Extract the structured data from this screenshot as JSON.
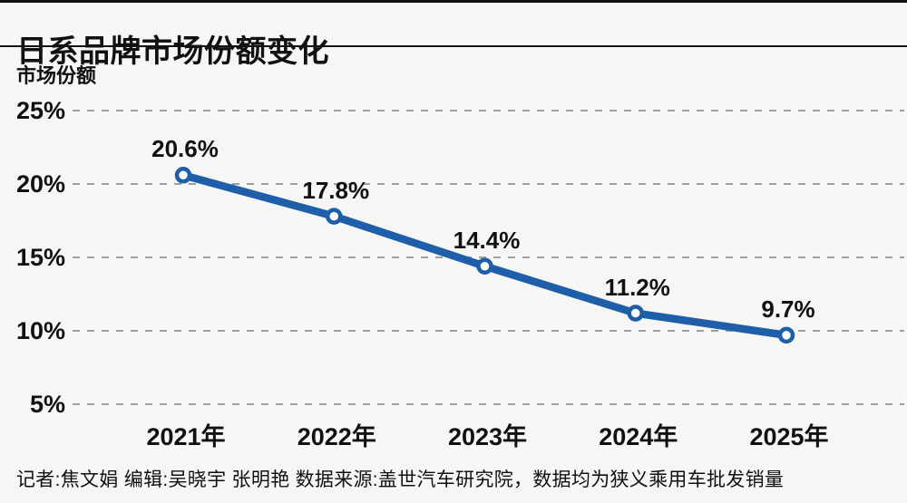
{
  "header": {
    "title": "日系品牌市场份额变化"
  },
  "chart_data": {
    "type": "line",
    "title": "日系品牌市场份额变化",
    "ylabel": "市场份额",
    "xlabel": "",
    "categories": [
      "2021年",
      "2022年",
      "2023年",
      "2024年",
      "2025年"
    ],
    "values": [
      20.6,
      17.8,
      14.4,
      11.2,
      9.7
    ],
    "point_labels": [
      "20.6%",
      "17.8%",
      "14.4%",
      "11.2%",
      "9.7%"
    ],
    "y_ticks": [
      {
        "value": 25,
        "label": "25%"
      },
      {
        "value": 20,
        "label": "20%"
      },
      {
        "value": 15,
        "label": "15%"
      },
      {
        "value": 10,
        "label": "10%"
      },
      {
        "value": 5,
        "label": "5%"
      }
    ],
    "ylim": [
      5,
      25
    ],
    "grid": "horizontal-dashed",
    "legend": "none",
    "marker": "hollow-circle"
  },
  "footer": {
    "credits": "记者:焦文娟  编辑:吴晓宇 张明艳  数据来源:盖世汽车研究院，数据均为狭义乘用车批发销量"
  },
  "colors": {
    "background": "#f6f6f5",
    "line": "#1f5fa9",
    "marker_fill": "#ffffff",
    "text": "#111111",
    "grid": "#9e9e9e",
    "rule": "#111111"
  }
}
